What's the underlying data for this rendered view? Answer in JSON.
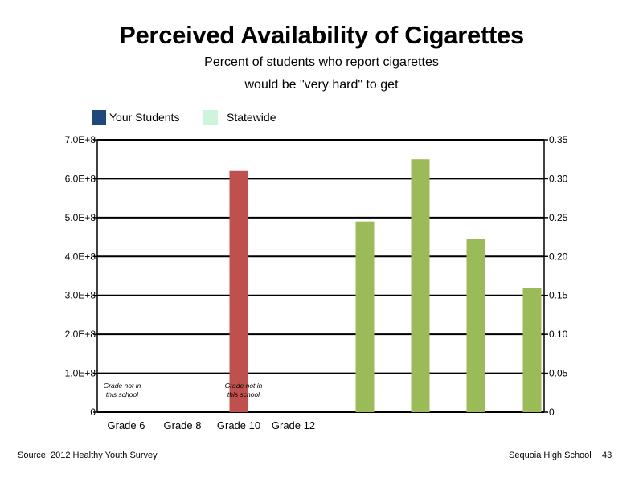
{
  "title": "Perceived Availability of Cigarettes",
  "subtitle_line1": "Percent of students who report cigarettes",
  "subtitle_line2": "would be \"very hard\" to get",
  "legend": [
    {
      "label": "Your Students",
      "color": "#1f497d"
    },
    {
      "label": "Statewide",
      "color": "#ccf5dc"
    }
  ],
  "footer": {
    "source": "Source: 2012 Healthy Youth Survey",
    "school": "Sequoia High School",
    "page": "43"
  },
  "chart_data": {
    "type": "bar",
    "categories": [
      "Grade 6",
      "Grade 8",
      "Grade 10",
      "Grade 12"
    ],
    "left_axis": {
      "ticks": [
        0,
        100000000,
        200000000,
        300000000,
        400000000,
        500000000,
        600000000,
        700000000
      ],
      "tick_labels": [
        "0",
        "1.0E+8",
        "2.0E+8",
        "3.0E+8",
        "4.0E+8",
        "5.0E+8",
        "6.0E+8",
        "7.0E+8"
      ],
      "ylim": [
        0,
        700000000
      ]
    },
    "right_axis": {
      "ticks": [
        0,
        0.05,
        0.1,
        0.15,
        0.2,
        0.25,
        0.3,
        0.35
      ],
      "tick_labels": [
        "0",
        "0.05",
        "0.10",
        "0.15",
        "0.20",
        "0.25",
        "0.30",
        "0.35"
      ],
      "ylim": [
        0,
        0.35
      ]
    },
    "left_series": [
      {
        "category": "Grade 10",
        "value": 620000000,
        "color": "#c0504d"
      }
    ],
    "right_series": {
      "values": [
        0.245,
        0.325,
        0.222,
        0.16
      ],
      "color": "#9bbb59"
    },
    "annotations": [
      {
        "category": "Grade 6",
        "lines": [
          "Grade not in",
          "this school"
        ]
      },
      {
        "category": "Grade 10",
        "lines": [
          "Grade not in",
          "this school"
        ]
      }
    ],
    "grid": true
  }
}
